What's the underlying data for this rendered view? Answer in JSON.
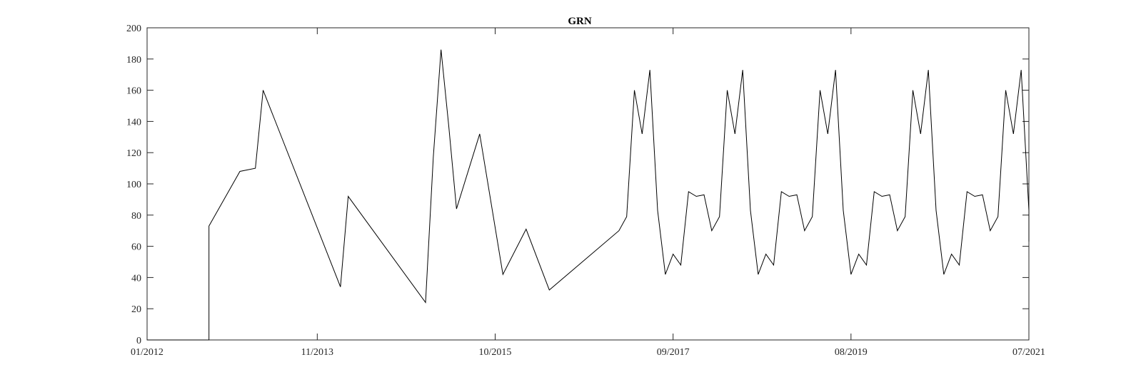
{
  "chart_data": {
    "type": "line",
    "title": "GRN",
    "xlabel": "",
    "ylabel": "",
    "x_unit": "month",
    "xlim": [
      "2012-01",
      "2021-07"
    ],
    "ylim": [
      0,
      200
    ],
    "grid": false,
    "legend": "none",
    "x_ticks": [
      "2012-01",
      "2013-11",
      "2015-10",
      "2017-09",
      "2019-08",
      "2021-07"
    ],
    "x_tick_labels": [
      "01/2012",
      "11/2013",
      "10/2015",
      "09/2017",
      "08/2019",
      "07/2021"
    ],
    "y_ticks": [
      0,
      20,
      40,
      60,
      80,
      100,
      120,
      140,
      160,
      180,
      200
    ],
    "y_tick_labels": [
      "0",
      "20",
      "40",
      "60",
      "80",
      "100",
      "120",
      "140",
      "160",
      "180",
      "200"
    ],
    "colors": {
      "line": "#000000",
      "axes": "#262626"
    },
    "series": [
      {
        "points": [
          [
            "2012-01",
            0
          ],
          [
            "2012-09",
            0
          ],
          [
            "2012-09",
            73
          ],
          [
            "2013-01",
            108
          ],
          [
            "2013-03",
            110
          ],
          [
            "2013-04",
            160
          ],
          [
            "2014-02",
            34
          ],
          [
            "2014-03",
            92
          ],
          [
            "2015-01",
            24
          ],
          [
            "2015-02",
            117
          ],
          [
            "2015-03",
            186
          ],
          [
            "2015-04",
            137
          ],
          [
            "2015-05",
            84
          ],
          [
            "2015-08",
            132
          ],
          [
            "2015-11",
            42
          ],
          [
            "2016-02",
            71
          ],
          [
            "2016-05",
            32
          ],
          [
            "2017-02",
            70
          ],
          [
            "2017-03",
            79
          ],
          [
            "2017-04",
            160
          ],
          [
            "2017-05",
            132
          ],
          [
            "2017-06",
            173
          ],
          [
            "2017-07",
            83
          ],
          [
            "2017-08",
            42
          ],
          [
            "2017-09",
            55
          ],
          [
            "2017-10",
            48
          ],
          [
            "2017-11",
            95
          ],
          [
            "2017-12",
            92
          ],
          [
            "2018-01",
            93
          ],
          [
            "2018-02",
            70
          ],
          [
            "2018-03",
            79
          ],
          [
            "2018-04",
            160
          ],
          [
            "2018-05",
            132
          ],
          [
            "2018-06",
            173
          ],
          [
            "2018-07",
            83
          ],
          [
            "2018-08",
            42
          ],
          [
            "2018-09",
            55
          ],
          [
            "2018-10",
            48
          ],
          [
            "2018-11",
            95
          ],
          [
            "2018-12",
            92
          ],
          [
            "2019-01",
            93
          ],
          [
            "2019-02",
            70
          ],
          [
            "2019-03",
            79
          ],
          [
            "2019-04",
            160
          ],
          [
            "2019-05",
            132
          ],
          [
            "2019-06",
            173
          ],
          [
            "2019-07",
            83
          ],
          [
            "2019-08",
            42
          ],
          [
            "2019-09",
            55
          ],
          [
            "2019-10",
            48
          ],
          [
            "2019-11",
            95
          ],
          [
            "2019-12",
            92
          ],
          [
            "2020-01",
            93
          ],
          [
            "2020-02",
            70
          ],
          [
            "2020-03",
            79
          ],
          [
            "2020-04",
            160
          ],
          [
            "2020-05",
            132
          ],
          [
            "2020-06",
            173
          ],
          [
            "2020-07",
            83
          ],
          [
            "2020-08",
            42
          ],
          [
            "2020-09",
            55
          ],
          [
            "2020-10",
            48
          ],
          [
            "2020-11",
            95
          ],
          [
            "2020-12",
            92
          ],
          [
            "2021-01",
            93
          ],
          [
            "2021-02",
            70
          ],
          [
            "2021-03",
            79
          ],
          [
            "2021-04",
            160
          ],
          [
            "2021-05",
            132
          ],
          [
            "2021-06",
            173
          ],
          [
            "2021-07",
            83
          ],
          [
            "2021-07",
            63
          ]
        ]
      }
    ]
  }
}
